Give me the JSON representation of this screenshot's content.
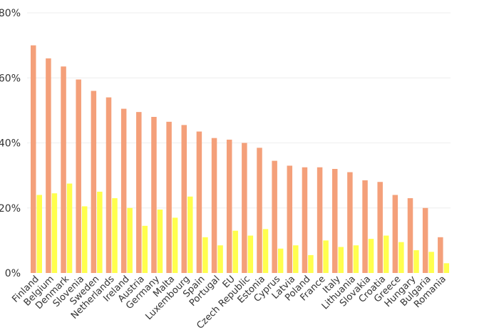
{
  "chart_data": {
    "type": "bar",
    "categories": [
      "Finland",
      "Belgium",
      "Denmark",
      "Slovenia",
      "Sweden",
      "Netherlands",
      "Ireland",
      "Austria",
      "Germany",
      "Malta",
      "Luxembourg",
      "Spain",
      "Portugal",
      "EU",
      "Czech Republic",
      "Estonia",
      "Cyprus",
      "Latvia",
      "Poland",
      "France",
      "Italy",
      "Lithuania",
      "Slovakia",
      "Croatia",
      "Greece",
      "Hungary",
      "Bulgaria",
      "Romania"
    ],
    "series": [
      {
        "values": [
          70,
          66,
          63.5,
          59.5,
          56,
          54,
          50.5,
          49.5,
          48,
          46.5,
          45.5,
          43.5,
          41.5,
          41,
          40,
          38.5,
          34.5,
          33,
          32.5,
          32.5,
          32,
          31,
          28.5,
          28,
          24,
          23,
          20,
          11
        ],
        "color": "#f4a07a"
      },
      {
        "values": [
          24,
          24.5,
          27.5,
          20.5,
          25,
          23,
          20,
          14.5,
          19.5,
          17,
          23.5,
          11,
          8.5,
          13,
          11.5,
          13.5,
          7.5,
          8.5,
          5.5,
          10,
          8,
          8.5,
          10.5,
          11.5,
          9.5,
          7,
          6.5,
          3
        ],
        "color": "#ffff4d"
      }
    ],
    "ylim": [
      0,
      80
    ],
    "yticks": [
      0,
      20,
      40,
      60,
      80
    ],
    "ytick_labels": [
      "0%",
      "20%",
      "40%",
      "60%",
      "80%"
    ],
    "title": "",
    "xlabel": "",
    "ylabel": "",
    "grid": true,
    "legend": "none"
  }
}
